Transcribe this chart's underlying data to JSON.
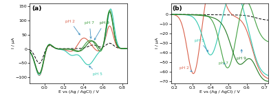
{
  "panel_a": {
    "title": "(a)",
    "xlabel": "E vs (Ag / AgCl) / V",
    "ylabel": "I / μA",
    "xlim": [
      -0.15,
      0.85
    ],
    "ylim": [
      -120,
      160
    ],
    "xticks": [
      0.0,
      0.2,
      0.4,
      0.6,
      0.8
    ],
    "yticks": [
      -100,
      -50,
      0,
      50,
      100,
      150
    ]
  },
  "panel_b": {
    "title": "(b)",
    "xlabel": "E vs (Ag / AgCl) / V",
    "ylabel": "I / μA",
    "xlim": [
      0.18,
      0.72
    ],
    "ylim": [
      -72,
      12
    ],
    "xticks": [
      0.2,
      0.3,
      0.4,
      0.5,
      0.6,
      0.7
    ],
    "yticks": [
      -70,
      -60,
      -50,
      -40,
      -30,
      -20,
      -10,
      0
    ]
  },
  "colors": {
    "pH2": "#d9604a",
    "pH5": "#30c8b0",
    "pH7": "#40a040",
    "pH9": "#207820",
    "blank": "#000000"
  },
  "annot_arrow_color": "#4090c0"
}
